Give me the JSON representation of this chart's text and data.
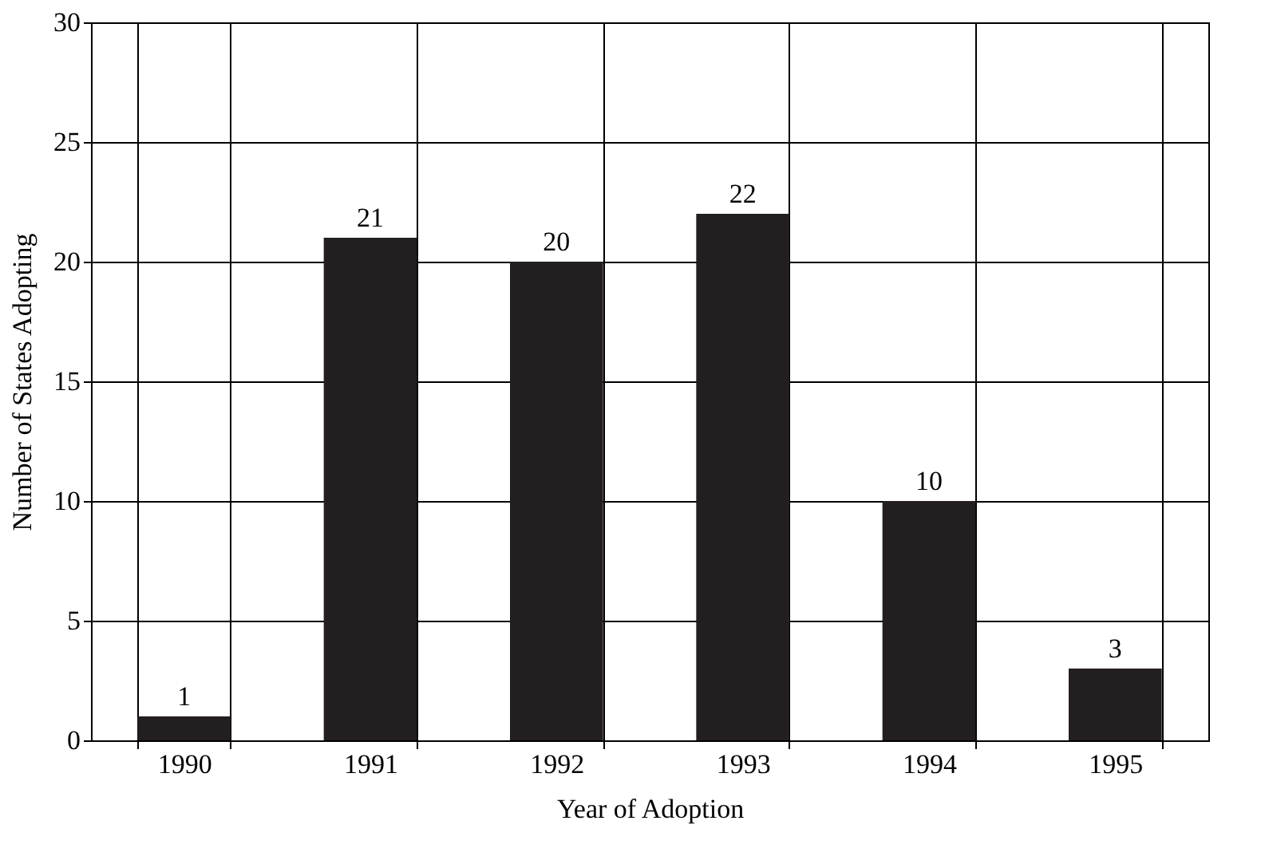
{
  "chart_data": {
    "type": "bar",
    "xlabel": "Year of Adoption",
    "ylabel": "Number of States Adopting",
    "categories": [
      "1990",
      "1991",
      "1992",
      "1993",
      "1994",
      "1995"
    ],
    "values": [
      1,
      21,
      20,
      22,
      10,
      3
    ],
    "color": "#231f20",
    "ylim": [
      0,
      30
    ],
    "yticks": [
      0,
      5,
      10,
      15,
      20,
      25,
      30
    ],
    "grid": true,
    "data_labels": true
  }
}
